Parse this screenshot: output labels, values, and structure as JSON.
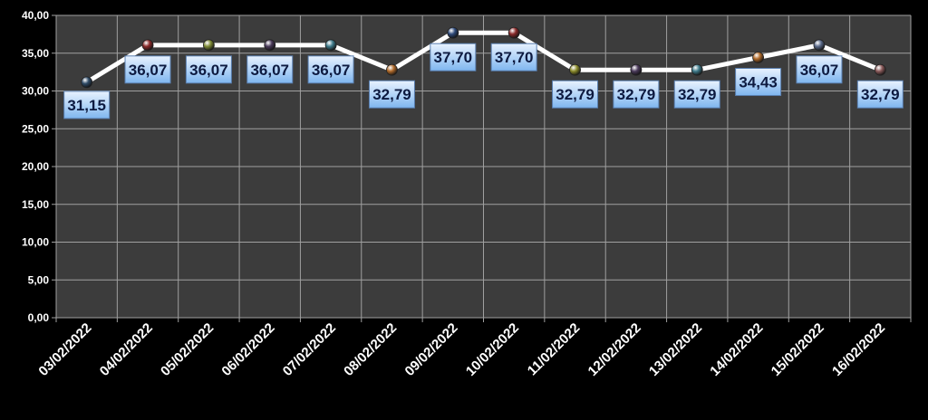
{
  "chart_data": {
    "type": "line",
    "title": "",
    "xlabel": "",
    "ylabel": "",
    "categories": [
      "03/02/2022",
      "04/02/2022",
      "05/02/2022",
      "06/02/2022",
      "07/02/2022",
      "08/02/2022",
      "09/02/2022",
      "10/02/2022",
      "11/02/2022",
      "12/02/2022",
      "13/02/2022",
      "14/02/2022",
      "15/02/2022",
      "16/02/2022"
    ],
    "series": [
      {
        "values": [
          31.15,
          36.07,
          36.07,
          36.07,
          36.07,
          32.79,
          37.7,
          37.7,
          32.79,
          32.79,
          32.79,
          34.43,
          36.07,
          32.79
        ],
        "labels": [
          "31,15",
          "36,07",
          "36,07",
          "36,07",
          "36,07",
          "32,79",
          "37,70",
          "37,70",
          "32,79",
          "32,79",
          "32,79",
          "34,43",
          "36,07",
          "32,79"
        ],
        "color": "#ffffff"
      }
    ],
    "ylim": [
      0,
      40
    ],
    "yticks": [
      "0,00",
      "5,00",
      "10,00",
      "15,00",
      "20,00",
      "25,00",
      "30,00",
      "35,00",
      "40,00"
    ],
    "grid": true,
    "legend": "none",
    "colors": {
      "background": "#000000",
      "plot_area": "#3c3c3c",
      "gridline": "#a0a0a0",
      "tick_text": "#ffffff",
      "label_box_top": "#e8f2ff",
      "label_box_bottom": "#7fb6ef",
      "label_text": "#0d1a40"
    },
    "marker_colors": [
      "#2e4a66",
      "#8a2a2a",
      "#7e8a34",
      "#4a3a5a",
      "#3e7a8a",
      "#b06a2a",
      "#2e4a7a",
      "#8a2a2a",
      "#8a8a2a",
      "#4a3a5a",
      "#3e7a8a",
      "#b06a2a",
      "#5a6a8a",
      "#8a5a5a"
    ]
  }
}
